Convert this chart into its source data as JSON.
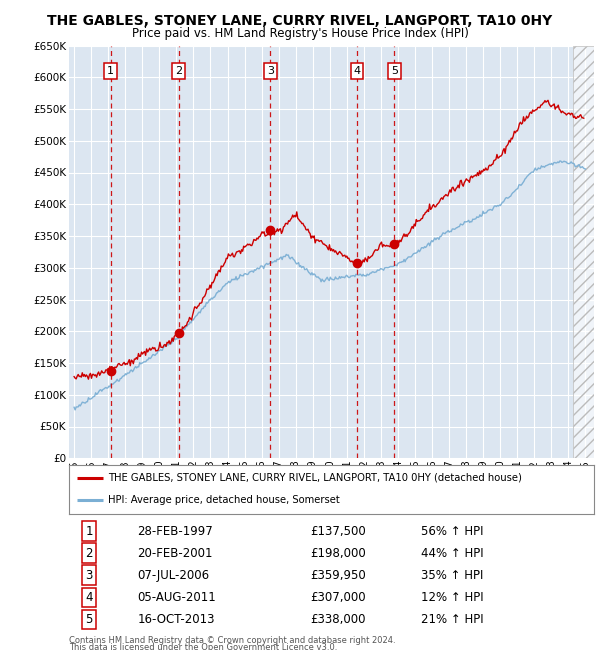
{
  "title": "THE GABLES, STONEY LANE, CURRY RIVEL, LANGPORT, TA10 0HY",
  "subtitle": "Price paid vs. HM Land Registry's House Price Index (HPI)",
  "legend_line1": "THE GABLES, STONEY LANE, CURRY RIVEL, LANGPORT, TA10 0HY (detached house)",
  "legend_line2": "HPI: Average price, detached house, Somerset",
  "footer1": "Contains HM Land Registry data © Crown copyright and database right 2024.",
  "footer2": "This data is licensed under the Open Government Licence v3.0.",
  "sales": [
    {
      "num": 1,
      "date": "28-FEB-1997",
      "date_x": 1997.15,
      "price": 137500,
      "hpi_pct": "56% ↑ HPI"
    },
    {
      "num": 2,
      "date": "20-FEB-2001",
      "date_x": 2001.13,
      "price": 198000,
      "hpi_pct": "44% ↑ HPI"
    },
    {
      "num": 3,
      "date": "07-JUL-2006",
      "date_x": 2006.52,
      "price": 359950,
      "hpi_pct": "35% ↑ HPI"
    },
    {
      "num": 4,
      "date": "05-AUG-2011",
      "date_x": 2011.59,
      "price": 307000,
      "hpi_pct": "12% ↑ HPI"
    },
    {
      "num": 5,
      "date": "16-OCT-2013",
      "date_x": 2013.79,
      "price": 338000,
      "hpi_pct": "21% ↑ HPI"
    }
  ],
  "ylim": [
    0,
    650000
  ],
  "yticks": [
    0,
    50000,
    100000,
    150000,
    200000,
    250000,
    300000,
    350000,
    400000,
    450000,
    500000,
    550000,
    600000,
    650000
  ],
  "xlim_start": 1994.7,
  "xlim_end": 2025.5,
  "plot_bg_color": "#dce6f1",
  "red_line_color": "#cc0000",
  "blue_line_color": "#7bafd4",
  "sale_marker_color": "#cc0000",
  "vline_color": "#cc0000",
  "box_color": "#cc0000"
}
